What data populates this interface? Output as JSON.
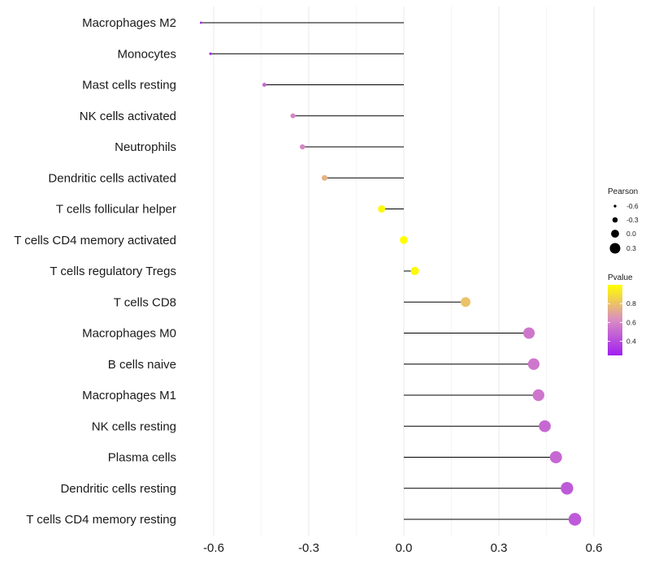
{
  "chart_data": {
    "type": "lollipop",
    "categories": [
      "Macrophages M2",
      "Monocytes",
      "Mast cells resting",
      "NK cells activated",
      "Neutrophils",
      "Dendritic cells activated",
      "T cells follicular helper",
      "T cells CD4 memory activated",
      "T cells regulatory  Tregs",
      "T cells CD8",
      "Macrophages M0",
      "B cells naive",
      "Macrophages M1",
      "NK cells resting",
      "Plasma cells",
      "Dendritic cells resting",
      "T cells CD4 memory resting"
    ],
    "pearson": [
      -0.64,
      -0.61,
      -0.44,
      -0.35,
      -0.32,
      -0.25,
      -0.07,
      0.0,
      0.035,
      0.195,
      0.395,
      0.41,
      0.425,
      0.445,
      0.48,
      0.515,
      0.54
    ],
    "pvalue": [
      0.3,
      0.3,
      0.5,
      0.6,
      0.6,
      0.75,
      0.98,
      1.0,
      0.98,
      0.8,
      0.55,
      0.55,
      0.55,
      0.5,
      0.5,
      0.45,
      0.45
    ],
    "xlim": [
      -0.68,
      0.64
    ],
    "xticks": [
      -0.6,
      -0.3,
      0.0,
      0.3,
      0.6
    ],
    "xtick_labels": [
      "-0.6",
      "-0.3",
      "0.0",
      "0.3",
      "0.6"
    ],
    "xlabel": "",
    "ylabel": "",
    "legend_size": {
      "title": "Pearson",
      "values": [
        -0.6,
        -0.3,
        0.0,
        0.3
      ],
      "labels": [
        "-0.6",
        "-0.3",
        "0.0",
        "0.3"
      ]
    },
    "legend_color": {
      "title": "Pvalue",
      "range": [
        0.25,
        1.0
      ],
      "ticks": [
        0.8,
        0.6,
        0.4
      ],
      "tick_labels": [
        "0.8",
        "0.6",
        "0.4"
      ],
      "colors_low_to_high": [
        "#a020f0",
        "#d98cc3",
        "#ffff00"
      ]
    },
    "colors": {
      "stem": "#000000",
      "grid": "#ebebeb"
    }
  }
}
